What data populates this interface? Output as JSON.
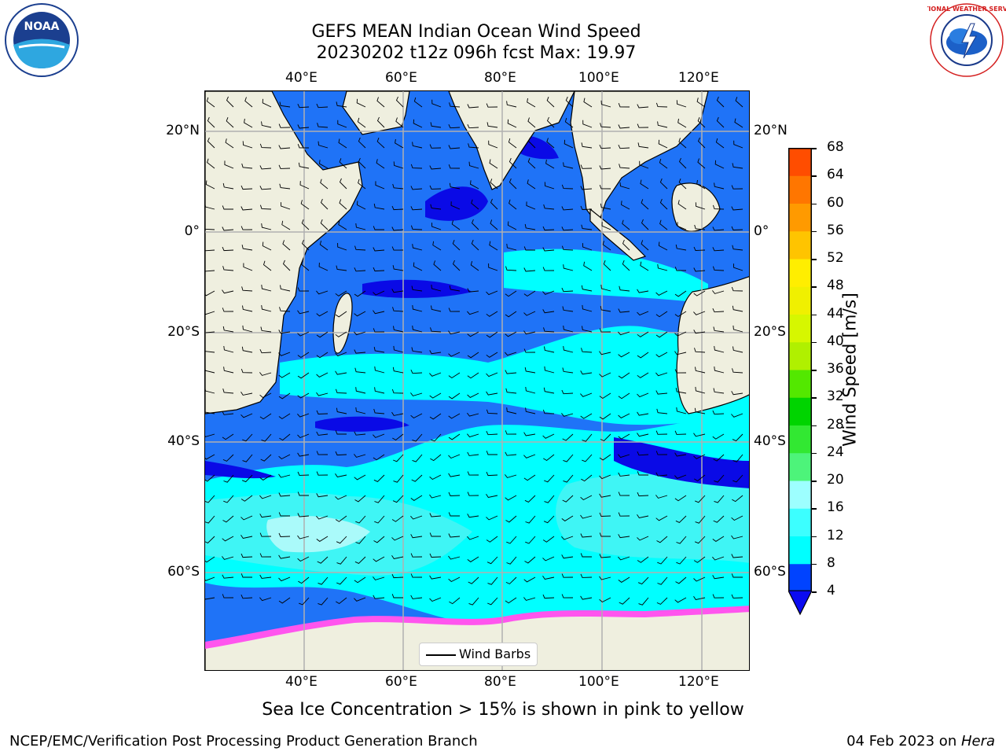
{
  "title_line1": "GEFS MEAN Indian Ocean Wind Speed",
  "title_line2": "20230202 t12z 096h fcst   Max: 19.97",
  "top_lon_ticks": [
    "40°E",
    "60°E",
    "80°E",
    "100°E",
    "120°E"
  ],
  "bottom_lon_ticks": [
    "40°E",
    "60°E",
    "80°E",
    "100°E",
    "120°E"
  ],
  "left_lat_ticks": [
    "20°N",
    "0°",
    "20°S",
    "40°S",
    "60°S"
  ],
  "right_lat_ticks": [
    "20°N",
    "0°",
    "20°S",
    "40°S",
    "60°S"
  ],
  "colorbar": {
    "label": "Wind Speed [m/s]",
    "ticks": [
      "68",
      "64",
      "60",
      "56",
      "52",
      "48",
      "44",
      "40",
      "36",
      "32",
      "28",
      "24",
      "20",
      "16",
      "12",
      "8",
      "4"
    ],
    "colors": [
      "#0043ff",
      "#00ffff",
      "#3cffff",
      "#9dffff",
      "#4df47a",
      "#32e832",
      "#00d400",
      "#53e800",
      "#b0f000",
      "#d6f700",
      "#f0f000",
      "#ffee00",
      "#ffc400",
      "#ff9a00",
      "#ff7600",
      "#ff4d00",
      "#ff0000"
    ],
    "extend_color": "#0b0bf0"
  },
  "map_colors": {
    "land": "#efefdf",
    "ocean_4_8": "#1f73f7",
    "ocean_lt4": "#0a0ae6",
    "ocean_8_12": "#00ffff",
    "ocean_12_16": "#3ff5f5",
    "ocean_16_20": "#aafafa",
    "sea_ice": "#ff55ee"
  },
  "legend_label": "Wind Barbs",
  "note": "Sea Ice Concentration > 15% is shown in pink to yellow",
  "footer_left": "NCEP/EMC/Verification Post Processing Product Generation Branch",
  "footer_right_date": "04 Feb 2023 on ",
  "footer_right_machine": "Hera",
  "logo_left_text": "NOAA",
  "logo_right_text": "NATIONAL WEATHER SERVICE"
}
